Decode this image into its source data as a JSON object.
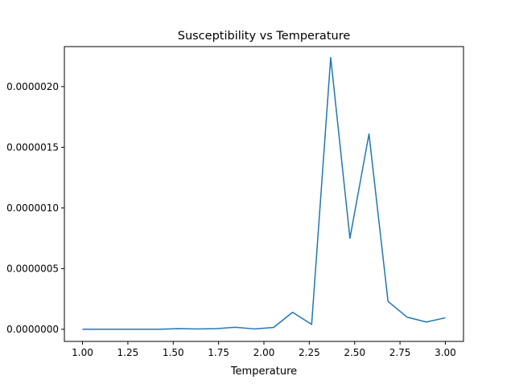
{
  "chart_data": {
    "type": "line",
    "title": "Susceptibility vs Temperature",
    "xlabel": "Temperature",
    "ylabel": "",
    "xlim": [
      0.9,
      3.1
    ],
    "ylim": [
      -1e-07,
      2.33e-06
    ],
    "xticks": [
      1.0,
      1.25,
      1.5,
      1.75,
      2.0,
      2.25,
      2.5,
      2.75,
      3.0
    ],
    "xtick_labels": [
      "1.00",
      "1.25",
      "1.50",
      "1.75",
      "2.00",
      "2.25",
      "2.50",
      "2.75",
      "3.00"
    ],
    "yticks": [
      0.0,
      5e-07,
      1e-06,
      1.5e-06,
      2e-06
    ],
    "ytick_labels": [
      "0.0000000",
      "0.0000005",
      "0.0000010",
      "0.0000015",
      "0.0000020"
    ],
    "grid": false,
    "series": [
      {
        "color": "#1f77b4",
        "x": [
          1.0,
          1.105,
          1.211,
          1.316,
          1.421,
          1.526,
          1.632,
          1.737,
          1.842,
          1.947,
          2.053,
          2.158,
          2.263,
          2.368,
          2.474,
          2.579,
          2.684,
          2.789,
          2.895,
          3.0
        ],
        "y": [
          0.0,
          0.0,
          0.0,
          0.0,
          0.0,
          5e-09,
          3e-09,
          5e-09,
          1.7e-08,
          3e-09,
          1.5e-08,
          1.4e-07,
          4e-08,
          2.24e-06,
          7.5e-07,
          1.61e-06,
          2.3e-07,
          1e-07,
          6e-08,
          9.5e-08
        ]
      }
    ]
  }
}
